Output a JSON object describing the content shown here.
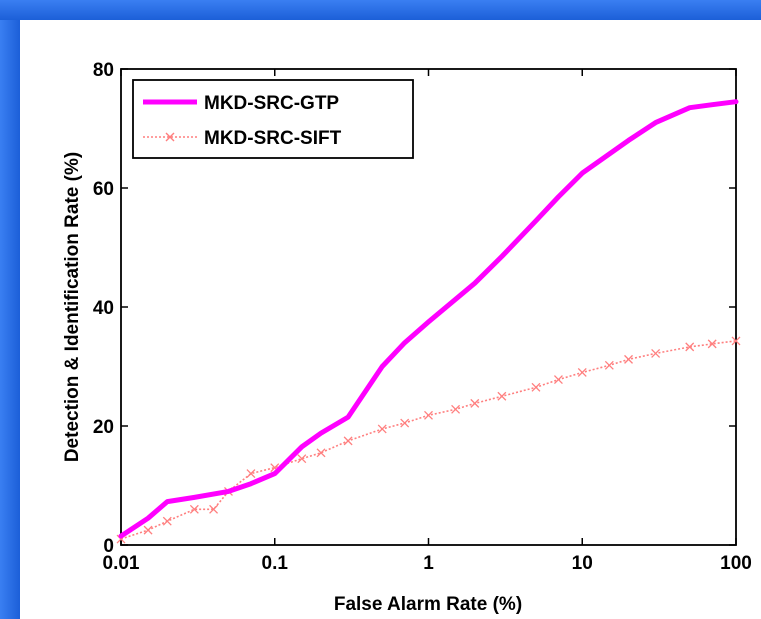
{
  "chart_data": {
    "type": "line",
    "title": "",
    "xlabel": "False Alarm Rate (%)",
    "ylabel": "Detection & Identification Rate (%)",
    "xscale": "log",
    "xlim": [
      0.01,
      100
    ],
    "ylim": [
      0,
      80
    ],
    "xticks": [
      0.01,
      0.1,
      1,
      10,
      100
    ],
    "xtick_labels": [
      "0.01",
      "0.1",
      "1",
      "10",
      "100"
    ],
    "yticks": [
      0,
      20,
      40,
      60,
      80
    ],
    "ytick_labels": [
      "0",
      "20",
      "40",
      "60",
      "80"
    ],
    "grid": false,
    "legend_position": "top-left",
    "series": [
      {
        "name": "MKD-SRC-GTP",
        "color": "#ff00ff",
        "style": "solid-thick",
        "x": [
          0.01,
          0.015,
          0.02,
          0.03,
          0.05,
          0.07,
          0.1,
          0.15,
          0.2,
          0.3,
          0.5,
          0.7,
          1,
          2,
          3,
          5,
          7,
          10,
          20,
          30,
          50,
          70,
          100
        ],
        "y": [
          1.5,
          4.5,
          7.3,
          8.0,
          9.0,
          10.3,
          12.0,
          16.5,
          18.8,
          21.5,
          30.0,
          34.0,
          37.5,
          44.0,
          48.5,
          54.5,
          58.5,
          62.5,
          68.0,
          71.0,
          73.5,
          74.0,
          74.5
        ]
      },
      {
        "name": "MKD-SRC-SIFT",
        "color": "#ff7f7f",
        "style": "dotted-x-markers",
        "x": [
          0.01,
          0.015,
          0.02,
          0.03,
          0.04,
          0.05,
          0.07,
          0.1,
          0.15,
          0.2,
          0.3,
          0.5,
          0.7,
          1,
          1.5,
          2,
          3,
          5,
          7,
          10,
          15,
          20,
          30,
          50,
          70,
          100
        ],
        "y": [
          1.0,
          2.5,
          4.0,
          6.0,
          6.0,
          9.0,
          12.0,
          13.0,
          14.5,
          15.5,
          17.5,
          19.5,
          20.5,
          21.8,
          22.8,
          23.8,
          25.0,
          26.5,
          27.8,
          29.0,
          30.2,
          31.2,
          32.2,
          33.3,
          33.8,
          34.3
        ]
      }
    ]
  }
}
